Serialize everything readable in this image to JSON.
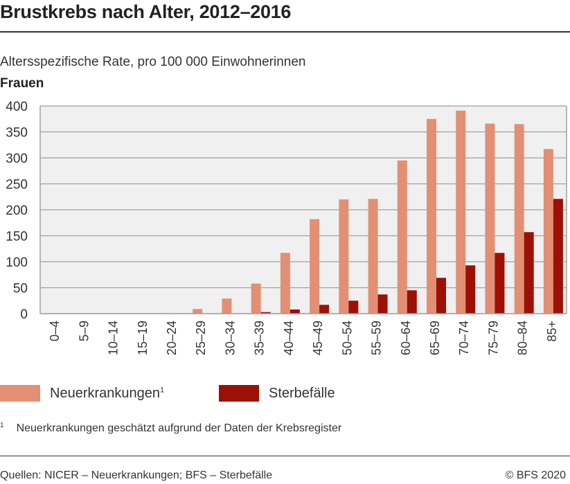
{
  "title": "Brustkrebs nach Alter, 2012–2016",
  "subtitle": "Altersspezifische Rate, pro 100 000 Einwohnerinnen",
  "group_label": "Frauen",
  "footnote_marker": "1",
  "footnote": "Neuerkrankungen geschätzt aufgrund der Daten der Krebsregister",
  "source": "Quellen: NICER – Neuerkrankungen; BFS – Sterbefälle",
  "copyright": "© BFS 2020",
  "colors": {
    "incidence": "#e38f73",
    "deaths": "#9c1006",
    "plot_bg": "#f0f0f0",
    "grid": "#a0a0a0"
  },
  "chart_data": {
    "type": "bar",
    "title": "Brustkrebs nach Alter, 2012–2016",
    "ylabel": "Altersspezifische Rate, pro 100 000 Einwohnerinnen",
    "ylim": [
      0,
      400
    ],
    "yticks": [
      0,
      50,
      100,
      150,
      200,
      250,
      300,
      350,
      400
    ],
    "grid": true,
    "legend_placement": "bottom-left",
    "categories": [
      "0–4",
      "5–9",
      "10–14",
      "15–19",
      "20–24",
      "25–29",
      "30–34",
      "35–39",
      "40–44",
      "45–49",
      "50–54",
      "55–59",
      "60–64",
      "65–69",
      "70–74",
      "75–79",
      "80–84",
      "85+"
    ],
    "series": [
      {
        "name": "Neuerkrankungen",
        "superscript": "1",
        "values": [
          0,
          0,
          0,
          0,
          1,
          9,
          29,
          58,
          117,
          182,
          220,
          221,
          295,
          375,
          391,
          366,
          365,
          317
        ]
      },
      {
        "name": "Sterbefälle",
        "values": [
          0,
          0,
          0,
          0,
          0,
          0,
          0,
          3,
          8,
          17,
          25,
          37,
          45,
          69,
          93,
          117,
          157,
          221
        ]
      }
    ]
  }
}
